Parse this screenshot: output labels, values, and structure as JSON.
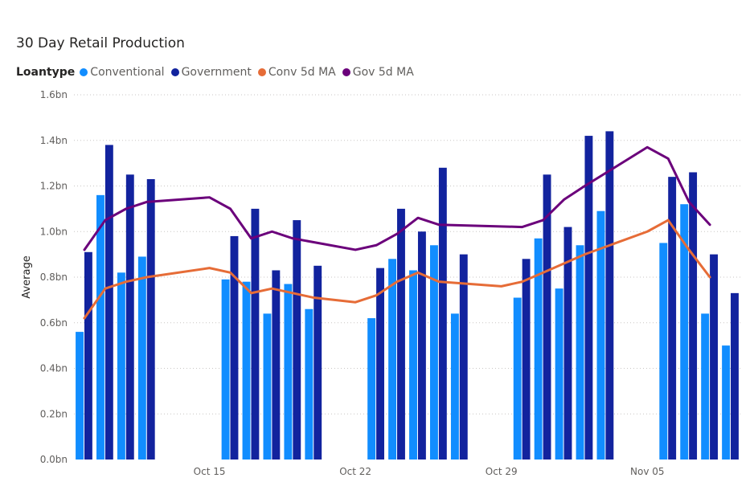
{
  "chart_data": {
    "type": "bar",
    "title": "30 Day Retail Production",
    "ylabel": "Average",
    "xlabel": "",
    "legend_title": "Loantype",
    "legend_position": "top-left",
    "grid": true,
    "ylim": [
      0,
      1.6
    ],
    "y_ticks": [
      "0.0bn",
      "0.2bn",
      "0.4bn",
      "0.6bn",
      "0.8bn",
      "1.0bn",
      "1.2bn",
      "1.4bn",
      "1.6bn"
    ],
    "x_ticks": [
      {
        "label": "Oct 15",
        "day": 15
      },
      {
        "label": "Oct 22",
        "day": 22
      },
      {
        "label": "Oct 29",
        "day": 29
      },
      {
        "label": "Nov 05",
        "day": 36
      }
    ],
    "x_days": [
      9,
      10,
      11,
      12,
      13,
      14,
      15,
      16,
      17,
      18,
      19,
      20,
      21,
      22,
      23,
      24,
      25,
      26,
      27,
      28,
      29,
      30,
      31,
      32,
      33,
      34,
      35,
      36,
      37,
      38,
      39,
      40
    ],
    "series": [
      {
        "name": "Conventional",
        "kind": "bar",
        "color": "#118DFF",
        "values": [
          0.56,
          1.16,
          0.82,
          0.89,
          null,
          null,
          null,
          0.79,
          0.78,
          0.64,
          0.77,
          0.66,
          null,
          null,
          0.62,
          0.88,
          0.83,
          0.94,
          0.64,
          null,
          null,
          0.71,
          0.97,
          0.75,
          0.94,
          1.09,
          null,
          null,
          0.95,
          1.12,
          0.64,
          0.5
        ]
      },
      {
        "name": "Government",
        "kind": "bar",
        "color": "#12239E",
        "values": [
          0.91,
          1.38,
          1.25,
          1.23,
          null,
          null,
          null,
          0.98,
          1.1,
          0.83,
          1.05,
          0.85,
          null,
          null,
          0.84,
          1.1,
          1.0,
          1.28,
          0.9,
          null,
          null,
          0.88,
          1.25,
          1.02,
          1.42,
          1.44,
          null,
          null,
          1.24,
          1.26,
          0.9,
          0.73
        ]
      },
      {
        "name": "Conv 5d MA",
        "kind": "line",
        "color": "#E66C37",
        "points": [
          [
            9,
            0.62
          ],
          [
            10,
            0.75
          ],
          [
            11,
            0.78
          ],
          [
            12,
            0.8
          ],
          [
            15,
            0.84
          ],
          [
            16,
            0.82
          ],
          [
            17,
            0.73
          ],
          [
            18,
            0.75
          ],
          [
            20,
            0.71
          ],
          [
            22,
            0.69
          ],
          [
            23,
            0.72
          ],
          [
            24,
            0.78
          ],
          [
            25,
            0.82
          ],
          [
            26,
            0.78
          ],
          [
            29,
            0.76
          ],
          [
            30,
            0.78
          ],
          [
            31,
            0.82
          ],
          [
            32,
            0.86
          ],
          [
            33,
            0.9
          ],
          [
            36,
            1.0
          ],
          [
            37,
            1.05
          ],
          [
            38,
            0.92
          ],
          [
            39,
            0.8
          ]
        ]
      },
      {
        "name": "Gov 5d MA",
        "kind": "line",
        "color": "#6B007B",
        "points": [
          [
            9,
            0.92
          ],
          [
            10,
            1.05
          ],
          [
            11,
            1.1
          ],
          [
            12,
            1.13
          ],
          [
            15,
            1.15
          ],
          [
            16,
            1.1
          ],
          [
            17,
            0.97
          ],
          [
            18,
            1.0
          ],
          [
            19,
            0.97
          ],
          [
            22,
            0.92
          ],
          [
            23,
            0.94
          ],
          [
            24,
            0.99
          ],
          [
            25,
            1.06
          ],
          [
            26,
            1.03
          ],
          [
            30,
            1.02
          ],
          [
            31,
            1.05
          ],
          [
            32,
            1.14
          ],
          [
            33,
            1.2
          ],
          [
            36,
            1.37
          ],
          [
            37,
            1.32
          ],
          [
            38,
            1.13
          ],
          [
            39,
            1.03
          ]
        ]
      }
    ]
  }
}
